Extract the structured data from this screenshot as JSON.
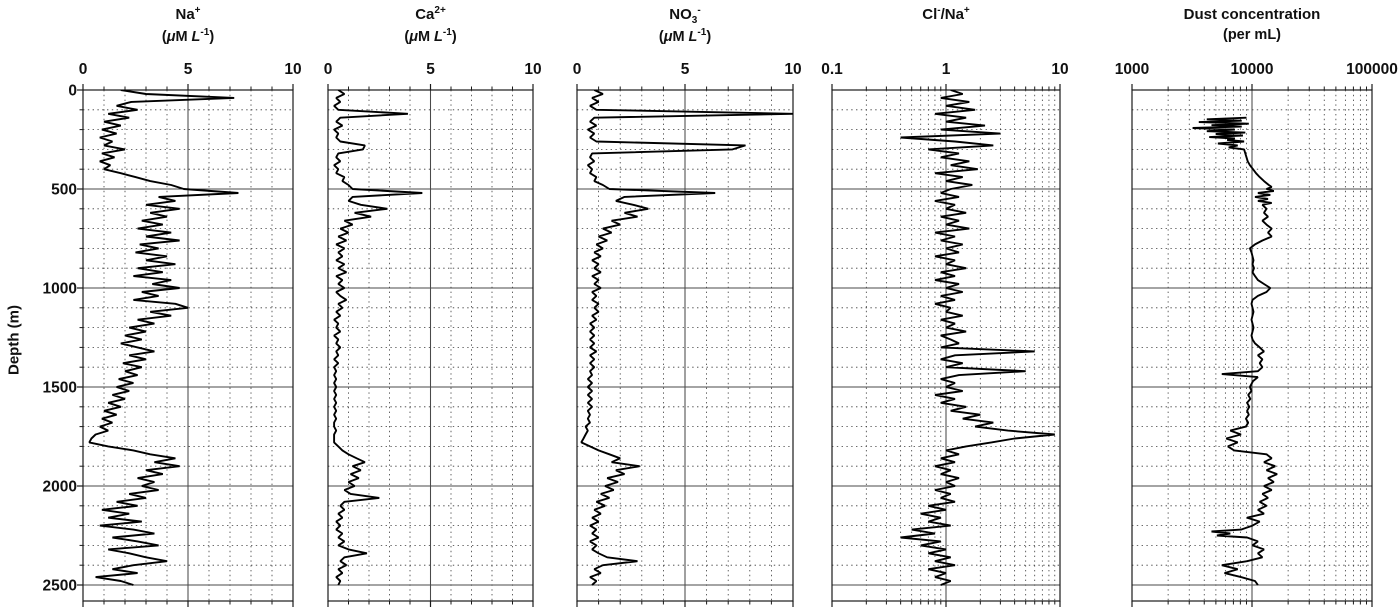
{
  "figure": {
    "background": "#ffffff",
    "trace_color": "#000000",
    "grid_solid_color": "#4a4a4a",
    "grid_dotted_color": "#3a3a3a",
    "axis_color": "#1a1a1a"
  },
  "depth_axis": {
    "label": "Depth (m)",
    "ticks": [
      0,
      500,
      1000,
      1500,
      2000,
      2500
    ],
    "tick_labels": [
      "0",
      "500",
      "1000",
      "1500",
      "2000",
      "2500"
    ],
    "minor_step": 100,
    "major_step": 500,
    "min": 0,
    "max": 2500
  },
  "chart_data": [
    {
      "type": "line",
      "key": "na",
      "title_parts": [
        {
          "t": "Na"
        },
        {
          "t": "+",
          "sup": true
        }
      ],
      "unit_parts": [
        {
          "t": "("
        },
        {
          "t": "μ",
          "i": true
        },
        {
          "t": "M "
        },
        {
          "t": "L",
          "i": true
        },
        {
          "t": "-1",
          "sup": true
        },
        {
          "t": ")"
        }
      ],
      "xscale": "linear",
      "xlim": [
        0,
        10
      ],
      "x_major_ticks": [
        0,
        5,
        10
      ],
      "x_tick_labels": [
        "0",
        "5",
        "10"
      ],
      "x_solid_gridlines": [
        5
      ],
      "ylabel": "Depth (m)",
      "ylim": [
        0,
        2500
      ],
      "depth_start": 0,
      "depth_step": 20,
      "values": [
        1.8,
        3.0,
        7.2,
        2.3,
        1.6,
        2.6,
        1.2,
        2.2,
        1.0,
        1.8,
        0.9,
        1.6,
        0.8,
        1.4,
        1.0,
        2.0,
        0.9,
        1.5,
        0.8,
        1.3,
        1.0,
        1.8,
        2.5,
        3.2,
        4.2,
        4.8,
        7.4,
        3.6,
        4.4,
        3.0,
        4.6,
        3.2,
        4.0,
        2.8,
        3.8,
        2.6,
        4.2,
        3.0,
        4.6,
        2.7,
        3.6,
        2.5,
        4.0,
        3.0,
        4.4,
        2.6,
        3.8,
        2.4,
        4.2,
        3.3,
        4.6,
        2.8,
        3.6,
        2.4,
        4.4,
        5.0,
        3.2,
        4.2,
        2.6,
        3.4,
        2.2,
        3.0,
        2.0,
        2.8,
        1.8,
        2.6,
        3.4,
        2.2,
        3.0,
        1.9,
        2.8,
        2.0,
        2.6,
        1.7,
        2.4,
        1.6,
        2.2,
        1.4,
        2.0,
        1.2,
        1.8,
        1.0,
        1.6,
        0.9,
        1.4,
        0.8,
        1.2,
        0.6,
        0.4,
        0.3,
        1.2,
        2.4,
        3.2,
        4.4,
        3.4,
        4.6,
        3.0,
        3.8,
        2.6,
        3.4,
        2.8,
        3.6,
        2.2,
        3.0,
        1.6,
        2.6,
        0.9,
        2.2,
        1.2,
        2.8,
        0.8,
        2.4,
        3.4,
        1.4,
        2.6,
        3.6,
        1.2,
        2.2,
        3.0,
        4.0,
        2.4,
        1.4,
        2.6,
        0.6,
        1.8,
        2.4
      ]
    },
    {
      "type": "line",
      "key": "ca",
      "title_parts": [
        {
          "t": "Ca"
        },
        {
          "t": "2+",
          "sup": true
        }
      ],
      "unit_parts": [
        {
          "t": "("
        },
        {
          "t": "μ",
          "i": true
        },
        {
          "t": "M "
        },
        {
          "t": "L",
          "i": true
        },
        {
          "t": "-1",
          "sup": true
        },
        {
          "t": ")"
        }
      ],
      "xscale": "linear",
      "xlim": [
        0,
        10
      ],
      "x_major_ticks": [
        0,
        5,
        10
      ],
      "x_tick_labels": [
        "0",
        "5",
        "10"
      ],
      "x_solid_gridlines": [
        5
      ],
      "ylabel": "Depth (m)",
      "ylim": [
        0,
        2500
      ],
      "depth_start": 0,
      "depth_step": 20,
      "values": [
        0.5,
        0.8,
        0.4,
        0.6,
        0.3,
        0.5,
        3.9,
        0.6,
        0.4,
        0.7,
        0.3,
        0.5,
        0.4,
        0.6,
        1.8,
        1.7,
        0.5,
        0.4,
        0.6,
        0.3,
        0.5,
        0.4,
        0.8,
        0.7,
        1.0,
        1.2,
        4.6,
        1.2,
        1.0,
        1.6,
        2.9,
        1.3,
        2.1,
        0.8,
        1.2,
        0.6,
        1.0,
        0.5,
        0.9,
        0.4,
        0.8,
        0.5,
        0.7,
        0.4,
        0.8,
        0.5,
        0.9,
        0.4,
        0.7,
        0.5,
        0.8,
        0.4,
        0.6,
        0.9,
        0.5,
        0.7,
        0.4,
        0.6,
        0.3,
        0.5,
        0.4,
        0.6,
        0.3,
        0.5,
        0.4,
        0.6,
        0.4,
        0.5,
        0.3,
        0.5,
        0.3,
        0.4,
        0.3,
        0.4,
        0.3,
        0.4,
        0.3,
        0.4,
        0.3,
        0.4,
        0.3,
        0.4,
        0.3,
        0.4,
        0.3,
        0.3,
        0.4,
        0.3,
        0.3,
        0.3,
        0.5,
        0.7,
        1.0,
        1.4,
        1.8,
        1.2,
        1.6,
        1.1,
        1.5,
        1.0,
        1.3,
        0.8,
        1.1,
        2.5,
        0.8,
        0.6,
        0.8,
        0.5,
        0.7,
        0.4,
        0.6,
        0.4,
        0.7,
        0.5,
        0.8,
        0.5,
        1.0,
        1.9,
        0.8,
        0.6,
        0.9,
        0.5,
        0.7,
        0.4,
        0.6,
        0.5
      ]
    },
    {
      "type": "line",
      "key": "no3",
      "title_parts": [
        {
          "t": "NO"
        },
        {
          "t": "3",
          "sub": true
        },
        {
          "t": "-",
          "sup": true
        }
      ],
      "unit_parts": [
        {
          "t": "("
        },
        {
          "t": "μ",
          "i": true
        },
        {
          "t": "M "
        },
        {
          "t": "L",
          "i": true
        },
        {
          "t": "-1",
          "sup": true
        },
        {
          "t": ")"
        }
      ],
      "xscale": "linear",
      "xlim": [
        0,
        10
      ],
      "x_major_ticks": [
        0,
        5,
        10
      ],
      "x_tick_labels": [
        "0",
        "5",
        "10"
      ],
      "x_solid_gridlines": [
        5
      ],
      "ylabel": "Depth (m)",
      "ylim": [
        0,
        2500
      ],
      "depth_start": 0,
      "depth_step": 20,
      "values": [
        0.8,
        1.2,
        0.7,
        1.0,
        0.6,
        0.9,
        10.0,
        0.8,
        0.6,
        0.9,
        0.5,
        0.8,
        0.6,
        0.9,
        7.8,
        7.2,
        0.7,
        0.6,
        0.8,
        0.5,
        0.7,
        0.6,
        0.9,
        0.8,
        1.2,
        1.5,
        6.4,
        2.2,
        1.8,
        2.6,
        3.3,
        2.2,
        2.8,
        1.6,
        2.0,
        1.2,
        1.6,
        1.0,
        1.4,
        0.9,
        1.2,
        0.8,
        1.1,
        0.7,
        1.0,
        0.8,
        1.1,
        0.7,
        1.0,
        0.8,
        1.1,
        0.7,
        0.9,
        0.7,
        1.0,
        0.8,
        1.0,
        0.7,
        0.9,
        0.6,
        0.8,
        0.6,
        0.8,
        0.6,
        0.8,
        0.6,
        0.9,
        0.6,
        0.8,
        0.6,
        0.8,
        0.6,
        0.7,
        0.5,
        0.7,
        0.5,
        0.7,
        0.5,
        0.7,
        0.5,
        0.7,
        0.5,
        0.6,
        0.5,
        0.6,
        0.4,
        0.5,
        0.4,
        0.3,
        0.2,
        0.6,
        1.0,
        1.5,
        2.0,
        1.6,
        2.9,
        1.8,
        2.2,
        1.4,
        1.9,
        1.3,
        1.7,
        1.1,
        1.5,
        0.9,
        1.3,
        0.8,
        1.1,
        0.7,
        1.0,
        0.6,
        0.9,
        0.7,
        1.0,
        0.6,
        0.9,
        0.7,
        1.0,
        1.4,
        2.8,
        1.2,
        0.8,
        1.1,
        0.6,
        0.9,
        0.7
      ]
    },
    {
      "type": "line",
      "key": "clna",
      "title_parts": [
        {
          "t": "Cl"
        },
        {
          "t": "-",
          "sup": true
        },
        {
          "t": "/Na"
        },
        {
          "t": "+",
          "sup": true
        }
      ],
      "unit_parts": [],
      "xscale": "log",
      "xlim": [
        0.1,
        10
      ],
      "x_major_ticks": [
        0.1,
        1,
        10
      ],
      "x_tick_labels": [
        "0.1",
        "1",
        "10"
      ],
      "x_solid_gridlines": [
        1
      ],
      "ylabel": "Depth (m)",
      "ylim": [
        0,
        2500
      ],
      "depth_start": 0,
      "depth_step": 20,
      "values": [
        1.1,
        1.4,
        0.9,
        1.6,
        1.0,
        1.8,
        0.8,
        1.5,
        1.0,
        2.2,
        0.9,
        3.0,
        0.4,
        1.2,
        2.6,
        0.7,
        1.3,
        0.9,
        1.6,
        1.1,
        1.9,
        0.8,
        1.4,
        1.0,
        1.7,
        1.1,
        0.9,
        1.3,
        0.8,
        1.2,
        1.0,
        1.5,
        0.9,
        1.3,
        1.0,
        1.6,
        0.8,
        1.2,
        0.9,
        1.4,
        1.0,
        1.3,
        0.8,
        1.2,
        1.0,
        1.5,
        0.9,
        1.2,
        0.8,
        1.3,
        1.0,
        1.4,
        0.9,
        1.2,
        0.8,
        1.1,
        1.0,
        1.4,
        0.9,
        1.2,
        1.0,
        1.5,
        0.9,
        1.1,
        1.3,
        0.9,
        6.0,
        1.2,
        0.9,
        1.4,
        1.0,
        5.0,
        1.3,
        0.9,
        1.2,
        1.0,
        1.4,
        0.8,
        1.2,
        0.9,
        1.5,
        1.1,
        2.0,
        1.4,
        2.6,
        1.8,
        3.5,
        9.0,
        4.0,
        2.5,
        1.5,
        1.0,
        1.3,
        0.9,
        1.2,
        0.8,
        1.1,
        0.9,
        1.3,
        1.0,
        1.2,
        0.8,
        1.1,
        0.9,
        1.2,
        0.7,
        1.0,
        0.6,
        0.9,
        0.7,
        1.1,
        0.5,
        0.8,
        0.4,
        0.9,
        0.6,
        1.0,
        0.7,
        1.1,
        0.8,
        1.2,
        0.7,
        1.0,
        0.8,
        1.1,
        0.9
      ]
    },
    {
      "type": "line",
      "key": "dust",
      "title_parts": [
        {
          "t": "Dust concentration"
        }
      ],
      "unit_parts": [
        {
          "t": "(per mL)"
        }
      ],
      "xscale": "log",
      "xlim": [
        1000,
        100000
      ],
      "x_major_ticks": [
        1000,
        10000,
        100000
      ],
      "x_tick_labels": [
        "1000",
        "10000",
        "100000"
      ],
      "x_solid_gridlines": [
        10000
      ],
      "ylabel": "Depth (m)",
      "ylim": [
        0,
        2500
      ],
      "points": [
        [
          140,
          9000
        ],
        [
          148,
          4200
        ],
        [
          155,
          8200
        ],
        [
          162,
          3600
        ],
        [
          170,
          9400
        ],
        [
          178,
          4600
        ],
        [
          185,
          8200
        ],
        [
          192,
          3200
        ],
        [
          200,
          7200
        ],
        [
          208,
          4200
        ],
        [
          215,
          8800
        ],
        [
          222,
          5000
        ],
        [
          230,
          8400
        ],
        [
          238,
          4400
        ],
        [
          245,
          7200
        ],
        [
          252,
          6200
        ],
        [
          260,
          8600
        ],
        [
          270,
          5200
        ],
        [
          280,
          7600
        ],
        [
          290,
          6400
        ],
        [
          300,
          8600
        ],
        [
          320,
          8800
        ],
        [
          340,
          9000
        ],
        [
          360,
          9200
        ],
        [
          380,
          9600
        ],
        [
          400,
          10200
        ],
        [
          420,
          10800
        ],
        [
          440,
          11600
        ],
        [
          460,
          12600
        ],
        [
          480,
          13800
        ],
        [
          490,
          14600
        ],
        [
          500,
          13200
        ],
        [
          510,
          15200
        ],
        [
          520,
          11200
        ],
        [
          530,
          14200
        ],
        [
          540,
          10600
        ],
        [
          550,
          13600
        ],
        [
          560,
          11200
        ],
        [
          570,
          14600
        ],
        [
          580,
          12200
        ],
        [
          600,
          13200
        ],
        [
          620,
          12600
        ],
        [
          640,
          13600
        ],
        [
          660,
          12200
        ],
        [
          680,
          13200
        ],
        [
          700,
          14600
        ],
        [
          720,
          13600
        ],
        [
          740,
          14600
        ],
        [
          760,
          12200
        ],
        [
          780,
          10600
        ],
        [
          800,
          9600
        ],
        [
          820,
          9900
        ],
        [
          840,
          10100
        ],
        [
          860,
          10300
        ],
        [
          880,
          10100
        ],
        [
          900,
          10400
        ],
        [
          920,
          10100
        ],
        [
          940,
          10600
        ],
        [
          960,
          11200
        ],
        [
          980,
          12600
        ],
        [
          1000,
          14200
        ],
        [
          1020,
          13200
        ],
        [
          1040,
          11200
        ],
        [
          1060,
          10100
        ],
        [
          1080,
          9900
        ],
        [
          1100,
          10100
        ],
        [
          1120,
          10300
        ],
        [
          1140,
          10100
        ],
        [
          1160,
          9900
        ],
        [
          1180,
          10100
        ],
        [
          1200,
          10300
        ],
        [
          1220,
          10100
        ],
        [
          1240,
          9900
        ],
        [
          1260,
          10100
        ],
        [
          1280,
          10600
        ],
        [
          1300,
          11600
        ],
        [
          1320,
          12600
        ],
        [
          1340,
          11200
        ],
        [
          1360,
          12200
        ],
        [
          1380,
          11600
        ],
        [
          1400,
          12200
        ],
        [
          1420,
          11200
        ],
        [
          1435,
          5600
        ],
        [
          1450,
          11200
        ],
        [
          1470,
          10200
        ],
        [
          1500,
          9600
        ],
        [
          1520,
          9900
        ],
        [
          1540,
          9300
        ],
        [
          1560,
          9700
        ],
        [
          1580,
          9100
        ],
        [
          1600,
          9500
        ],
        [
          1620,
          9100
        ],
        [
          1640,
          9400
        ],
        [
          1660,
          8900
        ],
        [
          1680,
          9300
        ],
        [
          1700,
          8900
        ],
        [
          1720,
          6600
        ],
        [
          1740,
          8100
        ],
        [
          1760,
          6100
        ],
        [
          1780,
          7600
        ],
        [
          1800,
          6300
        ],
        [
          1820,
          7100
        ],
        [
          1840,
          13200
        ],
        [
          1860,
          14600
        ],
        [
          1880,
          12600
        ],
        [
          1900,
          15600
        ],
        [
          1920,
          13200
        ],
        [
          1940,
          16200
        ],
        [
          1960,
          13600
        ],
        [
          1980,
          15200
        ],
        [
          2000,
          12600
        ],
        [
          2020,
          14600
        ],
        [
          2040,
          12200
        ],
        [
          2060,
          13600
        ],
        [
          2080,
          11600
        ],
        [
          2100,
          13200
        ],
        [
          2120,
          11200
        ],
        [
          2140,
          12600
        ],
        [
          2160,
          9100
        ],
        [
          2180,
          11600
        ],
        [
          2200,
          10100
        ],
        [
          2220,
          8100
        ],
        [
          2230,
          4600
        ],
        [
          2240,
          6600
        ],
        [
          2250,
          5100
        ],
        [
          2260,
          9100
        ],
        [
          2280,
          11200
        ],
        [
          2300,
          10100
        ],
        [
          2320,
          12600
        ],
        [
          2340,
          11200
        ],
        [
          2360,
          12200
        ],
        [
          2380,
          9100
        ],
        [
          2400,
          5600
        ],
        [
          2420,
          7600
        ],
        [
          2440,
          5900
        ],
        [
          2460,
          8100
        ],
        [
          2480,
          10600
        ],
        [
          2500,
          11200
        ]
      ]
    }
  ]
}
